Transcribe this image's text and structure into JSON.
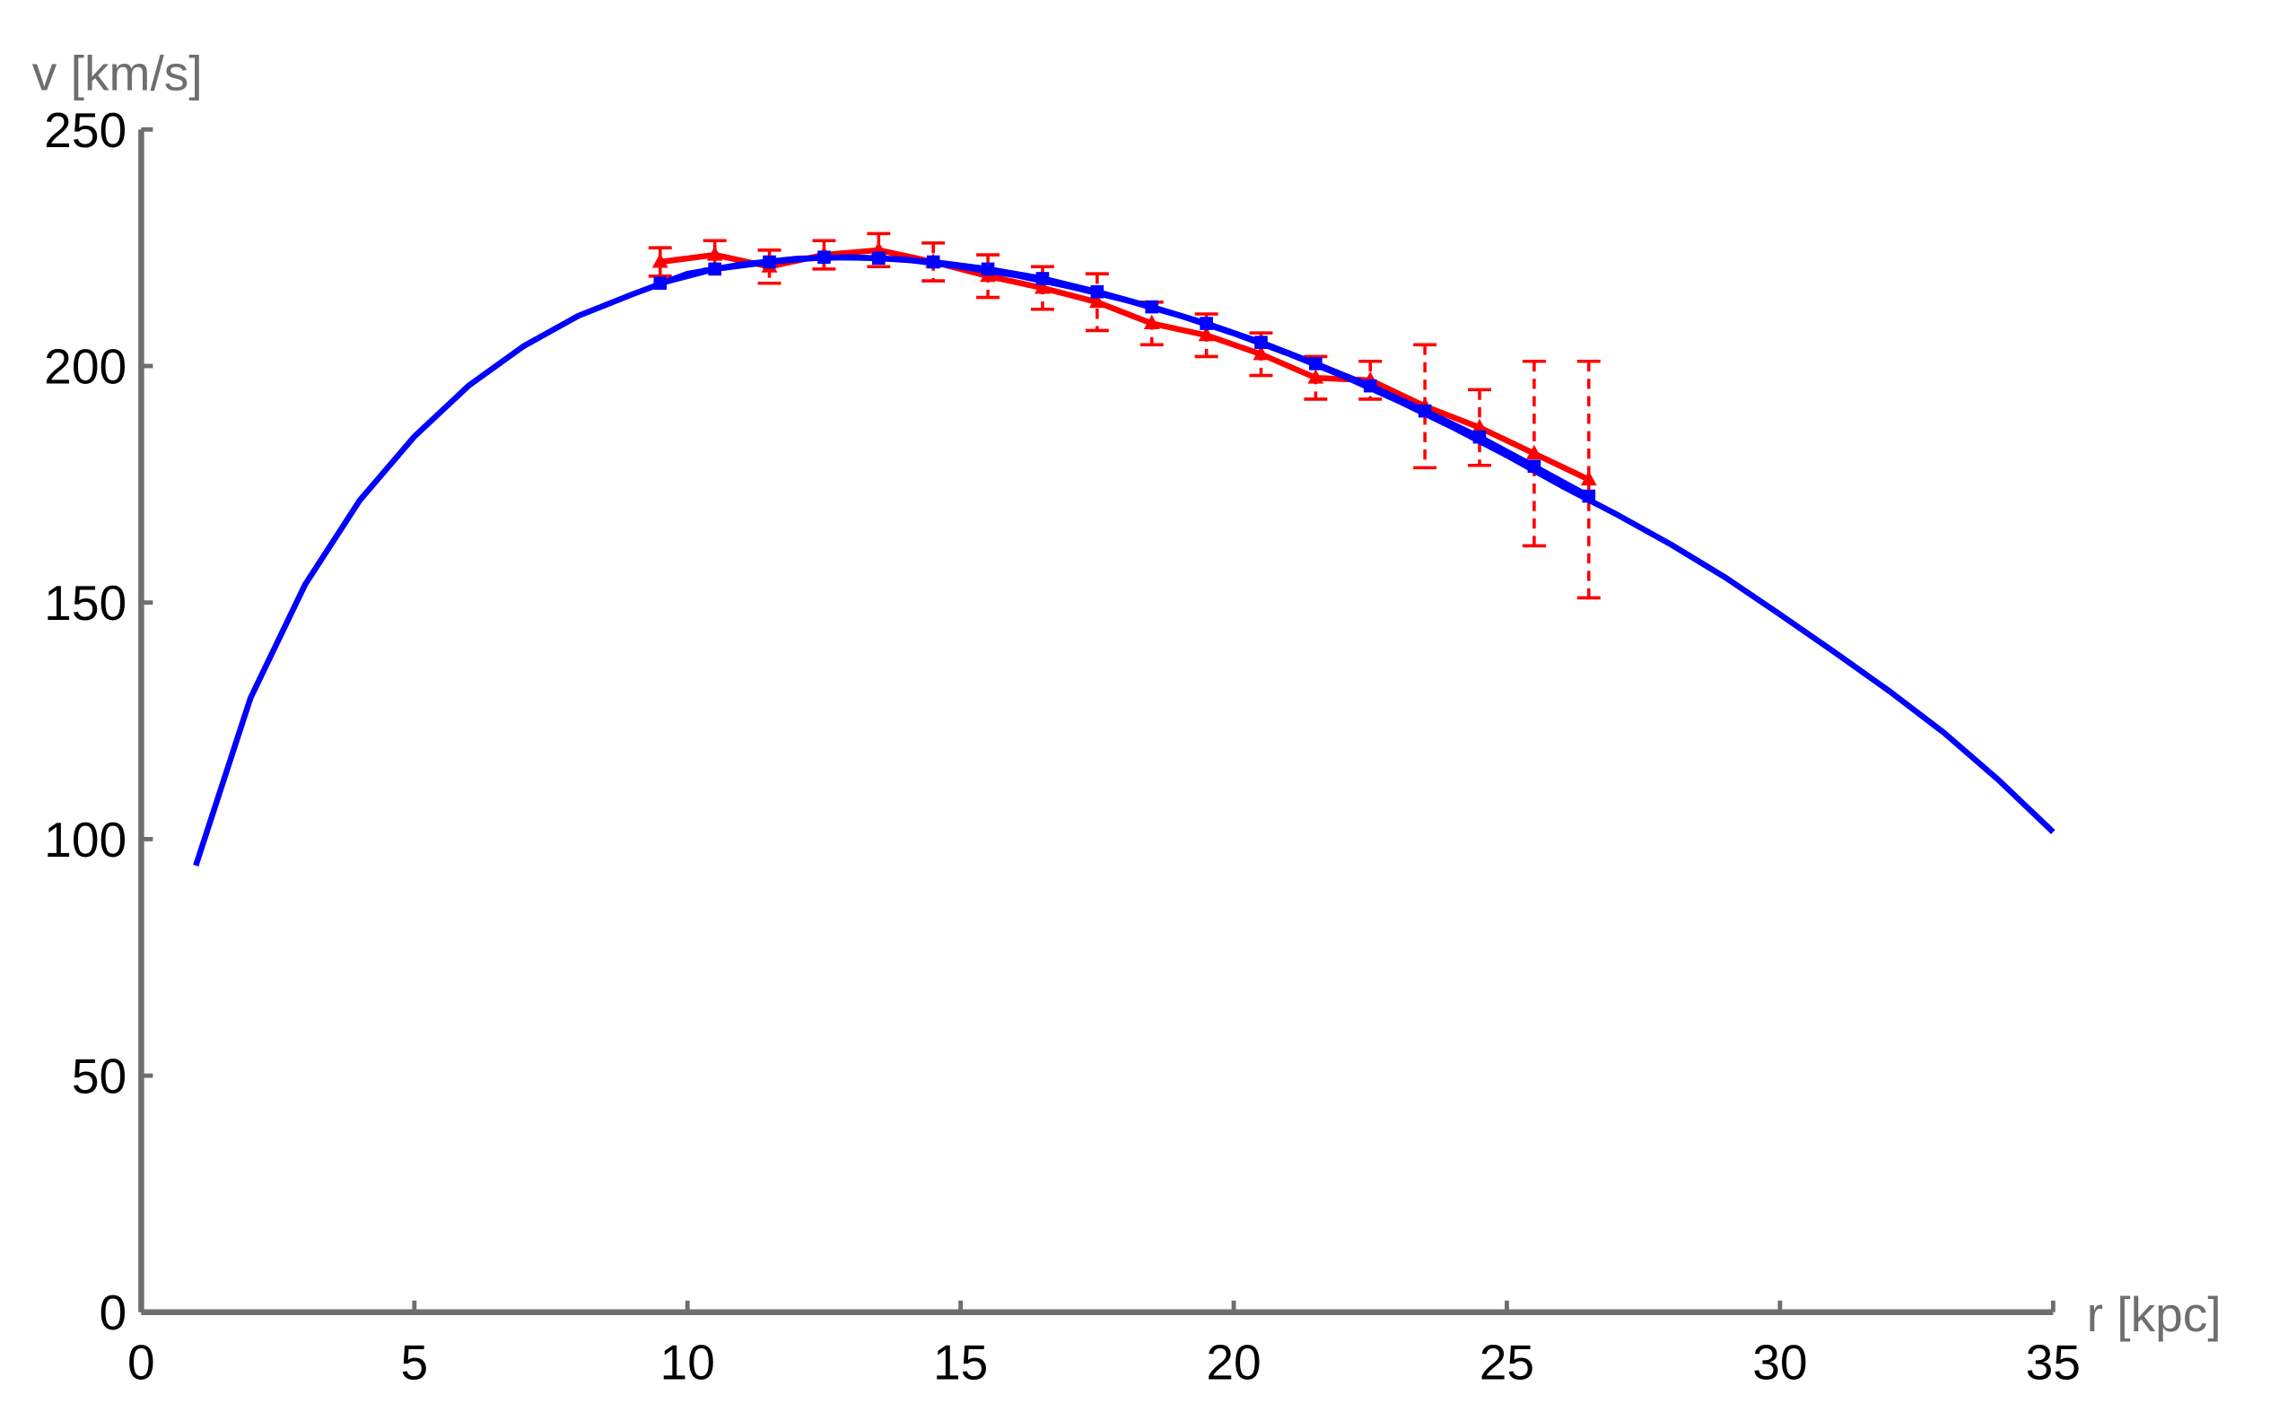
{
  "chart_data": {
    "type": "line",
    "x_label": "r [kpc]",
    "y_label": "v [km/s]",
    "xlim": [
      0,
      35
    ],
    "ylim": [
      0,
      250
    ],
    "xticks": [
      0,
      5,
      10,
      15,
      20,
      25,
      30,
      35
    ],
    "yticks": [
      0,
      50,
      100,
      150,
      200,
      250
    ],
    "series": [
      {
        "color": "#0000ff",
        "marker": "none",
        "x": [
          1,
          2,
          3,
          4,
          5,
          6,
          7,
          8,
          9,
          10,
          11,
          12,
          13,
          14,
          15,
          16,
          17,
          18,
          19,
          20,
          21,
          22,
          23,
          24,
          25,
          26,
          27,
          28,
          29,
          30,
          31,
          32,
          33,
          34,
          35
        ],
        "values": [
          94.4,
          129.8,
          153.8,
          171.6,
          185.1,
          195.9,
          204.2,
          210.6,
          215.2,
          219.5,
          221.5,
          222.7,
          223,
          222.5,
          221,
          219.2,
          216.8,
          214,
          210.7,
          206.9,
          202.6,
          197.9,
          192.7,
          187.1,
          181.1,
          174.7,
          168.7,
          162.3,
          155.3,
          147.5,
          139.5,
          131.3,
          122.5,
          112.5,
          101.5
        ]
      },
      {
        "color": "#ff0000",
        "marker": "triangle",
        "x": [
          9.5,
          10.5,
          11.5,
          12.5,
          13.5,
          14.5,
          15.5,
          16.5,
          17.5,
          18.5,
          19.5,
          20.5,
          21.5,
          22.5,
          23.5,
          24.5,
          25.5,
          26.5
        ],
        "values": [
          222,
          223.5,
          221,
          223.5,
          224.5,
          222,
          219,
          216.5,
          213.5,
          209,
          206.5,
          202.5,
          197.5,
          197,
          191.5,
          187,
          181.5,
          176
        ],
        "errors": [
          3,
          3,
          3.5,
          3,
          3.5,
          4,
          4.5,
          4.5,
          6,
          4.5,
          4.5,
          4.5,
          4.5,
          4,
          13,
          8,
          19.5,
          25
        ]
      },
      {
        "color": "#0000ff",
        "marker": "square",
        "x": [
          9.5,
          10.5,
          11.5,
          12.5,
          13.5,
          14.5,
          15.5,
          16.5,
          17.5,
          18.5,
          19.5,
          20.5,
          21.5,
          22.5,
          23.5,
          24.5,
          25.5,
          26.5
        ],
        "values": [
          217.5,
          220.5,
          222,
          223,
          222.8,
          222,
          220.5,
          218.5,
          215.7,
          212.5,
          209,
          205,
          200.5,
          195.8,
          190.5,
          185,
          178.8,
          172.5
        ]
      }
    ]
  }
}
